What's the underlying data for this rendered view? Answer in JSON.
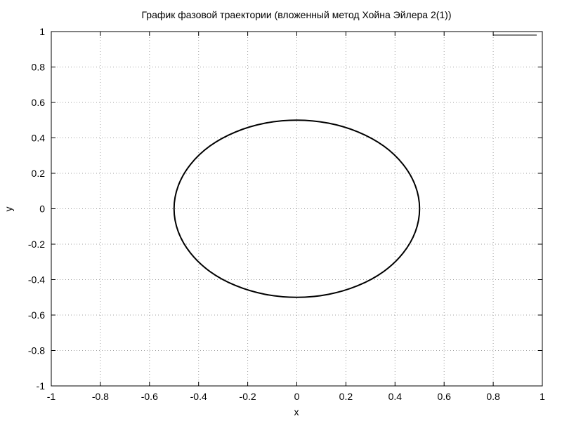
{
  "chart_data": {
    "type": "line",
    "title": "График фазовой траектории (вложенный метод Хойна Эйлера 2(1))",
    "xlabel": "x",
    "ylabel": "y",
    "xlim": [
      -1,
      1
    ],
    "ylim": [
      -1,
      1
    ],
    "xticks": [
      -1,
      -0.8,
      -0.6,
      -0.4,
      -0.2,
      0,
      0.2,
      0.4,
      0.6,
      0.8,
      1
    ],
    "yticks": [
      -1,
      -0.8,
      -0.6,
      -0.4,
      -0.2,
      0,
      0.2,
      0.4,
      0.6,
      0.8,
      1
    ],
    "xtick_labels": [
      "-1",
      "-0.8",
      "-0.6",
      "-0.4",
      "-0.2",
      "0",
      "0.2",
      "0.4",
      "0.6",
      "0.8",
      "1"
    ],
    "ytick_labels": [
      "-1",
      "-0.8",
      "-0.6",
      "-0.4",
      "-0.2",
      "0",
      "0.2",
      "0.4",
      "0.6",
      "0.8",
      "1"
    ],
    "grid": true,
    "legend": "top-right",
    "series": [
      {
        "color": "#000000",
        "x": [
          0.5,
          0.483,
          0.433,
          0.354,
          0.25,
          0.129,
          0,
          -0.129,
          -0.25,
          -0.354,
          -0.433,
          -0.483,
          -0.5,
          -0.483,
          -0.433,
          -0.354,
          -0.25,
          -0.129,
          0,
          0.129,
          0.25,
          0.354,
          0.433,
          0.483,
          0.5
        ],
        "y": [
          0,
          0.129,
          0.25,
          0.354,
          0.433,
          0.483,
          0.5,
          0.483,
          0.433,
          0.354,
          0.25,
          0.129,
          0,
          -0.129,
          -0.25,
          -0.354,
          -0.433,
          -0.483,
          -0.5,
          -0.483,
          -0.433,
          -0.354,
          -0.25,
          -0.129,
          0
        ]
      }
    ]
  }
}
